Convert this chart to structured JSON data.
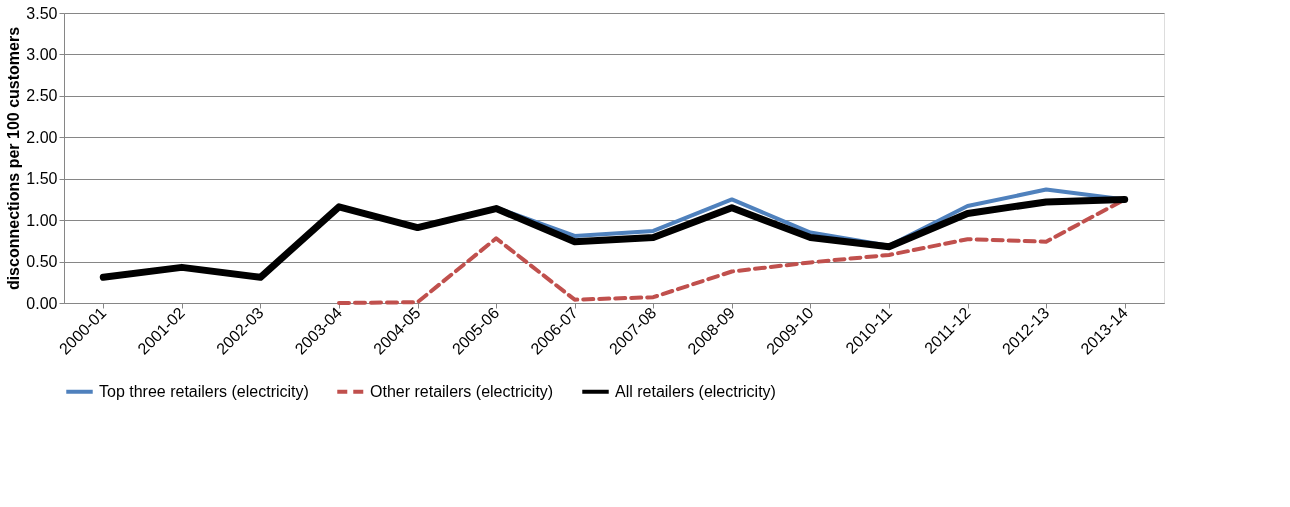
{
  "chart_data": {
    "type": "line",
    "ylabel": "disconnections per 100 customers",
    "categories": [
      "2000-01",
      "2001-02",
      "2002-03",
      "2003-04",
      "2004-05",
      "2005-06",
      "2006-07",
      "2007-08",
      "2008-09",
      "2009-10",
      "2010-11",
      "2011-12",
      "2012-13",
      "2013-14"
    ],
    "series": [
      {
        "name": "Top three retailers (electricity)",
        "color": "#4f81bd",
        "line_style": "solid",
        "values": [
          null,
          null,
          null,
          null,
          null,
          1.15,
          0.81,
          0.87,
          1.25,
          0.85,
          0.69,
          1.17,
          1.37,
          1.25
        ]
      },
      {
        "name": "Other retailers (electricity)",
        "color": "#c0504d",
        "line_style": "dashed",
        "values": [
          null,
          null,
          null,
          0.0,
          0.01,
          0.78,
          0.04,
          0.07,
          0.38,
          0.49,
          0.58,
          0.77,
          0.74,
          1.25
        ]
      },
      {
        "name": "All retailers (electricity)",
        "color": "#000000",
        "line_style": "solid",
        "values": [
          0.31,
          0.43,
          0.31,
          1.16,
          0.91,
          1.14,
          0.74,
          0.79,
          1.15,
          0.79,
          0.68,
          1.08,
          1.22,
          1.25
        ]
      }
    ],
    "ylim": [
      0,
      3.5
    ],
    "yticks": [
      {
        "value": 0,
        "label": "0.00"
      },
      {
        "value": 0.5,
        "label": "0.50"
      },
      {
        "value": 1,
        "label": "1.00"
      },
      {
        "value": 1.5,
        "label": "1.50"
      },
      {
        "value": 2,
        "label": "2.00"
      },
      {
        "value": 2.5,
        "label": "2.50"
      },
      {
        "value": 3,
        "label": "3.00"
      },
      {
        "value": 3.5,
        "label": "3.50"
      }
    ],
    "grid": "y",
    "legend": "bottom",
    "marker": "none"
  }
}
